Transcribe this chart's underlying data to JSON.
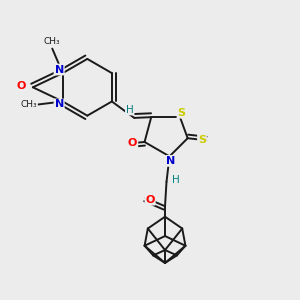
{
  "background_color": "#ececec",
  "bond_color": "#1a1a1a",
  "atom_colors": {
    "O": "#ff0000",
    "N": "#0000cd",
    "S": "#cccc00",
    "H": "#008080",
    "C": "#1a1a1a"
  },
  "figsize": [
    3.0,
    3.0
  ],
  "dpi": 100
}
